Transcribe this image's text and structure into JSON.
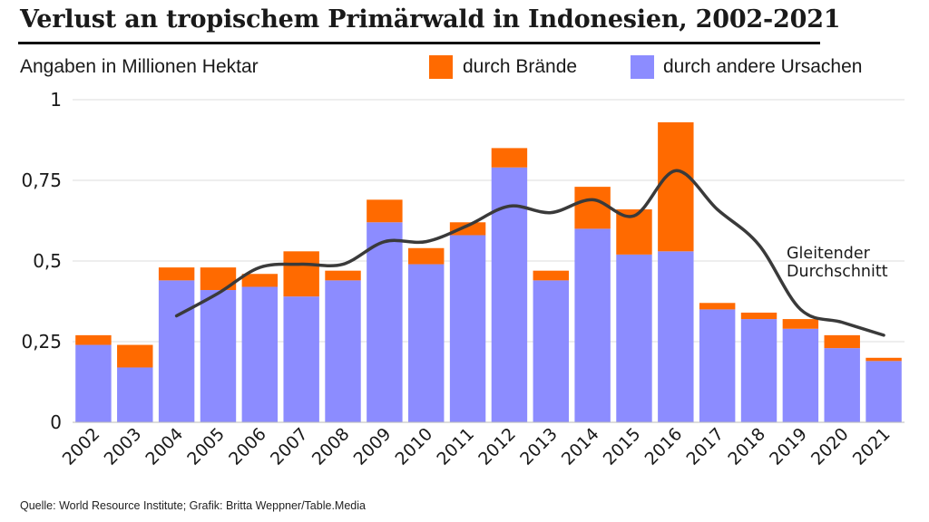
{
  "title": "Verlust an tropischem Primärwald in Indonesien, 2002-2021",
  "subtitle": "Angaben in Millionen Hektar",
  "source": "Quelle: World Resource Institute; Grafik: Britta Weppner/Table.Media",
  "legend": {
    "fire": "durch Brände",
    "other": "durch andere Ursachen"
  },
  "colors": {
    "fire": "#ff6a00",
    "other": "#8c8cff",
    "line": "#3a3a3a",
    "grid": "#dddddd"
  },
  "chart_data": {
    "type": "bar",
    "stacked": true,
    "categories": [
      "2002",
      "2003",
      "2004",
      "2005",
      "2006",
      "2007",
      "2008",
      "2009",
      "2010",
      "2011",
      "2012",
      "2013",
      "2014",
      "2015",
      "2016",
      "2017",
      "2018",
      "2019",
      "2020",
      "2021"
    ],
    "series": [
      {
        "name": "durch andere Ursachen",
        "values": [
          0.24,
          0.17,
          0.44,
          0.41,
          0.42,
          0.39,
          0.44,
          0.62,
          0.49,
          0.58,
          0.79,
          0.44,
          0.6,
          0.52,
          0.53,
          0.35,
          0.32,
          0.29,
          0.23,
          0.19
        ]
      },
      {
        "name": "durch Brände",
        "values": [
          0.03,
          0.07,
          0.04,
          0.07,
          0.04,
          0.14,
          0.03,
          0.07,
          0.05,
          0.04,
          0.06,
          0.03,
          0.13,
          0.14,
          0.4,
          0.02,
          0.02,
          0.03,
          0.04,
          0.01
        ]
      }
    ],
    "moving_average": {
      "label": "Gleitender Durchschnitt",
      "x": [
        "2004",
        "2005",
        "2006",
        "2007",
        "2008",
        "2009",
        "2010",
        "2011",
        "2012",
        "2013",
        "2014",
        "2015",
        "2016",
        "2017",
        "2018",
        "2019",
        "2020",
        "2021"
      ],
      "values": [
        0.33,
        0.4,
        0.48,
        0.49,
        0.49,
        0.56,
        0.56,
        0.61,
        0.67,
        0.65,
        0.69,
        0.64,
        0.78,
        0.66,
        0.55,
        0.35,
        0.31,
        0.27
      ]
    },
    "yticks": [
      "0",
      "0,25",
      "0,5",
      "0,75",
      "1"
    ],
    "ylim": [
      0,
      1
    ],
    "ylabel": "Angaben in Millionen Hektar",
    "grid": true,
    "legend_position": "top-right"
  }
}
